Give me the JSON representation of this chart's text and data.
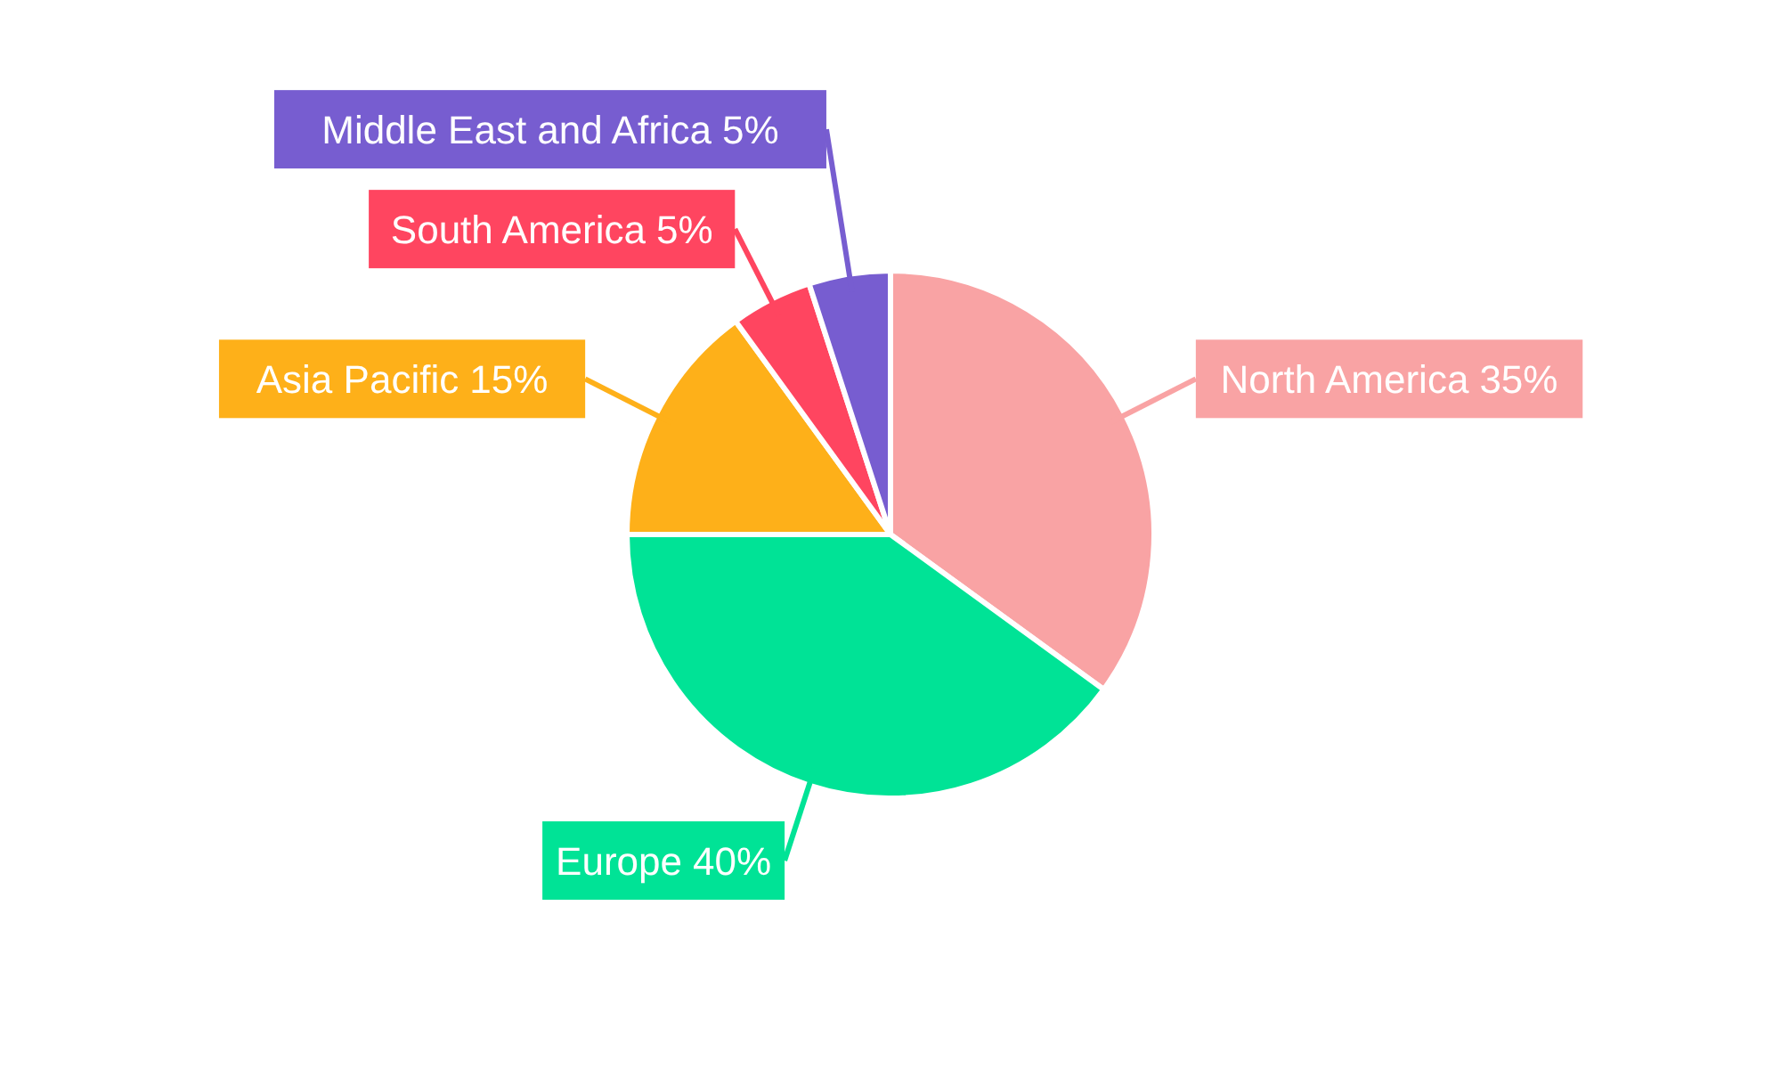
{
  "chart_data": {
    "type": "pie",
    "categories": [
      "North America",
      "Europe",
      "Asia Pacific",
      "South America",
      "Middle East and Africa"
    ],
    "values": [
      35,
      40,
      15,
      5,
      5
    ],
    "colors": [
      "#f9a3a4",
      "#00e396",
      "#feb019",
      "#ff4560",
      "#775dd0"
    ],
    "value_labels": [
      "35%",
      "40%",
      "15%",
      "5%",
      "5%"
    ]
  }
}
